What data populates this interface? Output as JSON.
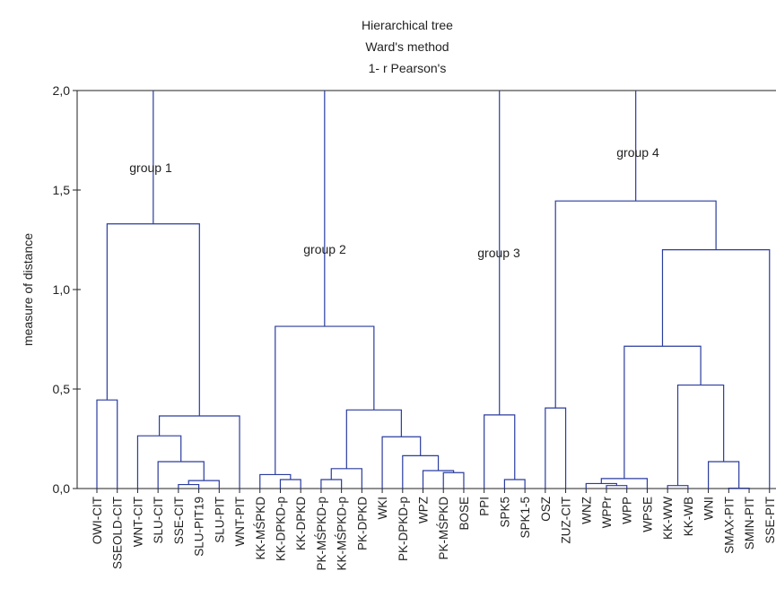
{
  "chart_data": {
    "type": "dendrogram",
    "title": [
      "Hierarchical tree",
      "Ward's method",
      "1- r Pearson's"
    ],
    "y_label": "measure of distance",
    "ylim": [
      0,
      2
    ],
    "yticks": [
      {
        "value": 0,
        "label": "0,0"
      },
      {
        "value": 0.5,
        "label": "0,5"
      },
      {
        "value": 1,
        "label": "1,0"
      },
      {
        "value": 1.5,
        "label": "1,5"
      },
      {
        "value": 2,
        "label": "2,0"
      }
    ],
    "color": "#2a3c9e",
    "categories": [
      "OWI-CIT",
      "SSEOLD-CIT",
      "WNT-CIT",
      "SLU-CIT",
      "SSE-CIT",
      "SLU-PIT19",
      "SLU-PIT",
      "WNT-PIT",
      "KK-MŚPKD",
      "KK-DPKD-p",
      "KK-DPKD",
      "PK-MŚPKD-p",
      "KK-MŚPKD-p",
      "PK-DPKD",
      "WKI",
      "PK-DPKD-p",
      "WPZ",
      "PK-MŚPKD",
      "BOSE",
      "PPI",
      "SPK5",
      "SPK1-5",
      "OSZ",
      "ZUZ-CIT",
      "WNZ",
      "WPPr",
      "WPP",
      "WPSE",
      "KK-WW",
      "KK-WB",
      "WNI",
      "SMAX-PIT",
      "SMIN-PIT",
      "SSE-PIT"
    ],
    "merges": [
      [
        4,
        5,
        0.02
      ],
      [
        34,
        6,
        0.04
      ],
      [
        3,
        35,
        0.135
      ],
      [
        2,
        36,
        0.265
      ],
      [
        37,
        7,
        0.365
      ],
      [
        0,
        1,
        0.445
      ],
      [
        39,
        38,
        1.33
      ],
      [
        9,
        10,
        0.045
      ],
      [
        8,
        41,
        0.07
      ],
      [
        11,
        12,
        0.045
      ],
      [
        43,
        13,
        0.1
      ],
      [
        17,
        18,
        0.08
      ],
      [
        16,
        45,
        0.09
      ],
      [
        15,
        46,
        0.165
      ],
      [
        14,
        47,
        0.26
      ],
      [
        44,
        48,
        0.395
      ],
      [
        42,
        49,
        0.815
      ],
      [
        20,
        21,
        0.045
      ],
      [
        19,
        51,
        0.37
      ],
      [
        22,
        23,
        0.405
      ],
      [
        25,
        26,
        0.015
      ],
      [
        24,
        54,
        0.025
      ],
      [
        55,
        27,
        0.05
      ],
      [
        28,
        29,
        0.015
      ],
      [
        31,
        32,
        0.002
      ],
      [
        30,
        58,
        0.135
      ],
      [
        57,
        59,
        0.52
      ],
      [
        56,
        60,
        0.715
      ],
      [
        61,
        33,
        1.2
      ],
      [
        53,
        62,
        1.445
      ]
    ],
    "annotations": [
      "group 1",
      "group 2",
      "group 3",
      "group 4"
    ]
  }
}
